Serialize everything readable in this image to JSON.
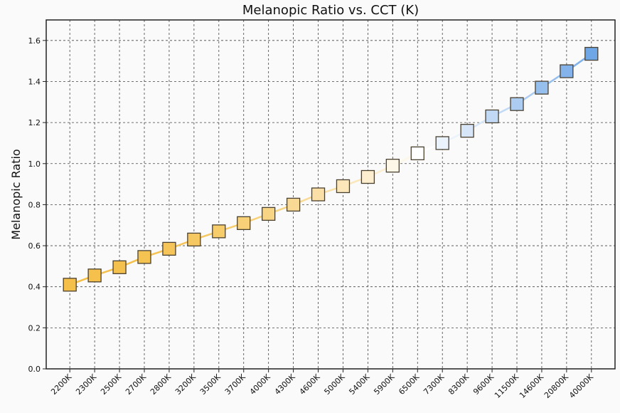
{
  "chart_data": {
    "type": "line",
    "title": "Melanopic Ratio vs. CCT (K)",
    "xlabel": "",
    "ylabel": "Melanopic Ratio",
    "ylim": [
      0,
      1.7
    ],
    "yticks": [
      "0.0",
      "0.2",
      "0.4",
      "0.6",
      "0.8",
      "1.0",
      "1.2",
      "1.4",
      "1.6"
    ],
    "grid": true,
    "marker": "square",
    "colors": {
      "warm": "#f5c04a",
      "neutral": "#ffffff",
      "cool": "#6ea6e6"
    },
    "categories": [
      "2200K",
      "2300K",
      "2500K",
      "2700K",
      "2800K",
      "3200K",
      "3500K",
      "3700K",
      "4000K",
      "4300K",
      "4600K",
      "5000K",
      "5400K",
      "5900K",
      "6500K",
      "7300K",
      "8300K",
      "9600K",
      "11500K",
      "14600K",
      "20800K",
      "40000K"
    ],
    "values": [
      0.41,
      0.455,
      0.495,
      0.545,
      0.585,
      0.63,
      0.67,
      0.71,
      0.755,
      0.8,
      0.85,
      0.89,
      0.935,
      0.99,
      1.05,
      1.1,
      1.16,
      1.23,
      1.29,
      1.37,
      1.45,
      1.535
    ]
  }
}
